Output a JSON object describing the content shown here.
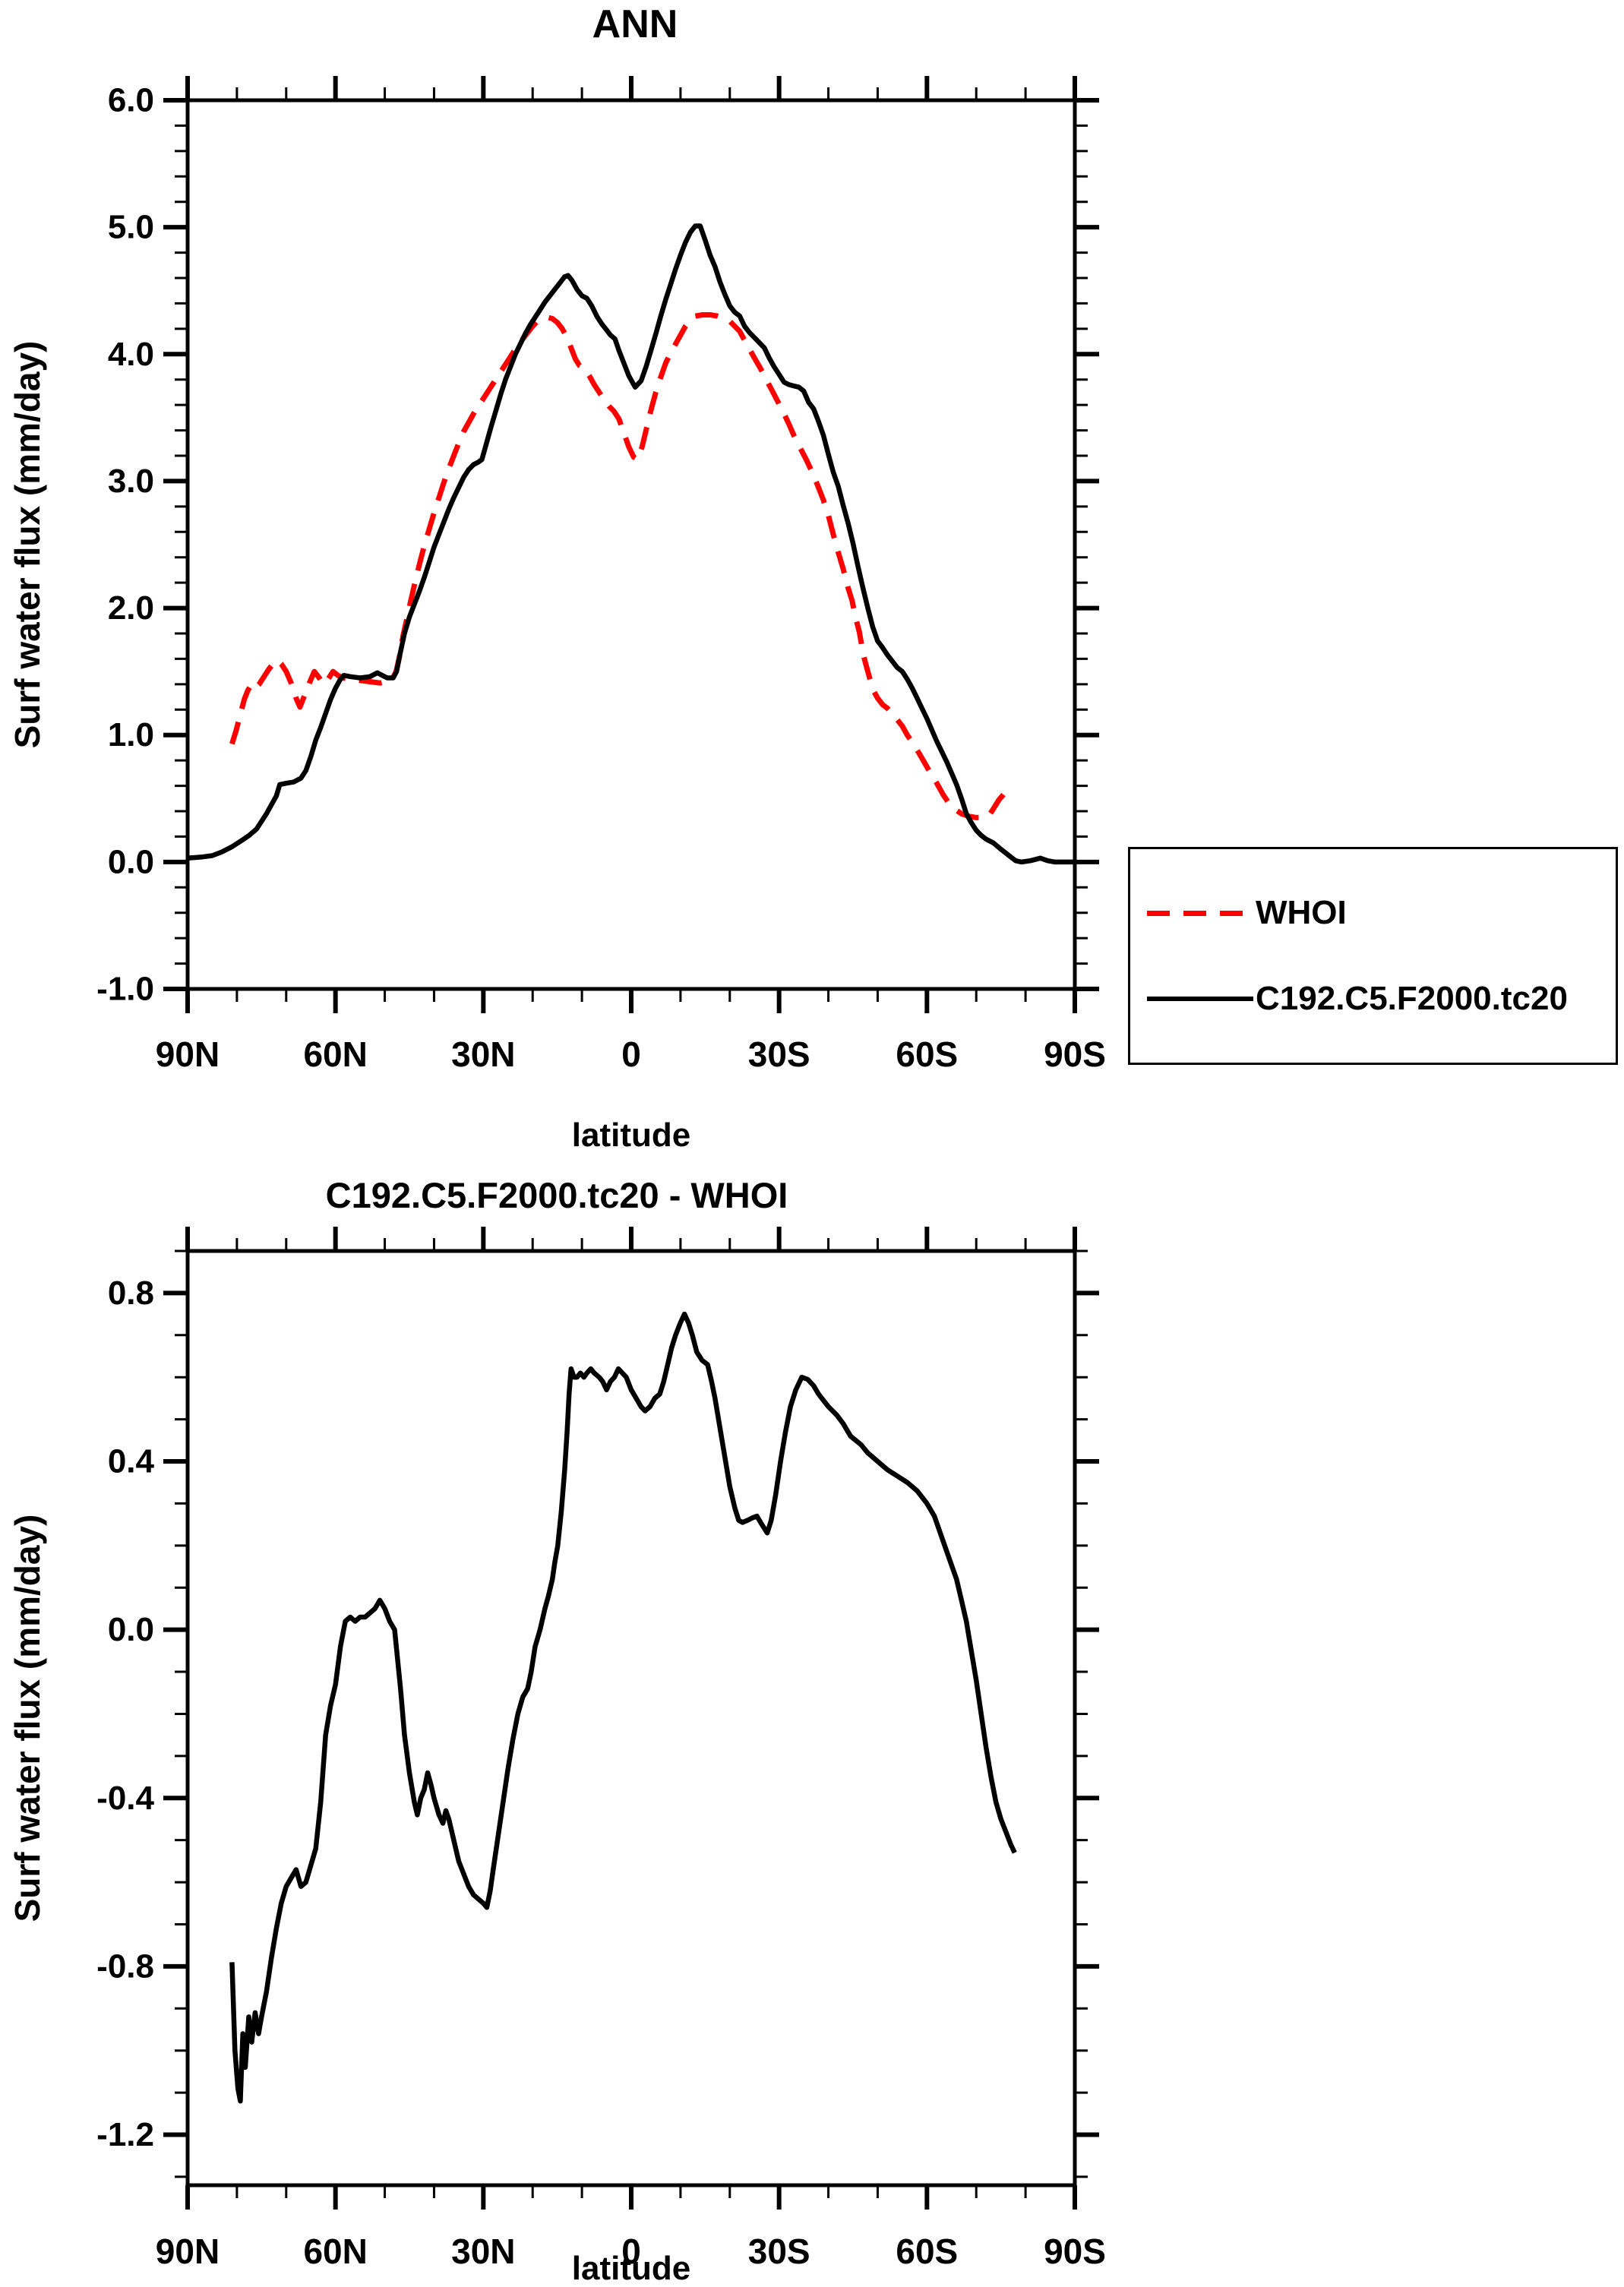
{
  "figure": {
    "background": "#ffffff",
    "accent_black": "#000000",
    "accent_red": "#ff0000"
  },
  "chart_data": [
    {
      "type": "line",
      "title": "ANN",
      "xlabel": "latitude",
      "ylabel": "Surf water flux (mm/day)",
      "xlim": [
        90,
        -90
      ],
      "ylim": [
        -1.0,
        6.0
      ],
      "grid": false,
      "x_tick_labels": [
        "90N",
        "60N",
        "30N",
        "0",
        "30S",
        "60S",
        "90S"
      ],
      "y_tick_labels": [
        "6.0",
        "5.0",
        "4.0",
        "3.0",
        "2.0",
        "1.0",
        "0.0",
        "-1.0"
      ],
      "x_minor_step": 10,
      "y_minor_step": 0.2,
      "legend_position": "outside-right-bottom",
      "series": [
        {
          "name": "WHOI",
          "color": "#ff0000",
          "style": "dashed",
          "lat": [
            81,
            80.2,
            79.4,
            78.5,
            77.8,
            77.2,
            76.5,
            75.5,
            74.5,
            73.5,
            72.5,
            71.8,
            71,
            70,
            69,
            68,
            67.2,
            66.3,
            65.3,
            64.3,
            63.3,
            62.5,
            61.5,
            60.5,
            59.5,
            58.5,
            57,
            55,
            53,
            51,
            49.5,
            48.5,
            47.7,
            47,
            46.3,
            45.5,
            44.7,
            44,
            43,
            42,
            41,
            40,
            39,
            38,
            37,
            36,
            35,
            34,
            33,
            32,
            31,
            30,
            29,
            28,
            27,
            26,
            25,
            24,
            23,
            22,
            21,
            20,
            19,
            18,
            17,
            16,
            15,
            14,
            13,
            12,
            11.3,
            10.5,
            9.5,
            8.5,
            7.5,
            6.5,
            5.5,
            4.5,
            3.5,
            2.5,
            1.5,
            0.5,
            -0.5,
            -1.3,
            -2.2,
            -3,
            -4,
            -5,
            -6,
            -7,
            -8,
            -9,
            -10,
            -11,
            -12,
            -13,
            -14.5,
            -16,
            -17.5,
            -19,
            -20,
            -21,
            -22,
            -23,
            -24,
            -25,
            -26.2,
            -27.4,
            -28.5,
            -29.7,
            -31,
            -32,
            -33,
            -34.3,
            -35.5,
            -36.6,
            -37.9,
            -39,
            -40,
            -41,
            -42,
            -43,
            -44,
            -44.8,
            -45.5,
            -46.3,
            -47.1,
            -48,
            -49,
            -50,
            -51,
            -52,
            -53,
            -54,
            -55,
            -56,
            -57.4,
            -58.5,
            -59.7,
            -61,
            -62,
            -63.3,
            -64.5,
            -65.5,
            -67,
            -68.5,
            -70,
            -71.5,
            -72.5,
            -73.5,
            -74.6,
            -75.5,
            -76.3,
            -77.3
          ],
          "val": [
            0.93,
            1.03,
            1.15,
            1.28,
            1.35,
            1.39,
            1.36,
            1.4,
            1.46,
            1.52,
            1.57,
            1.59,
            1.56,
            1.5,
            1.41,
            1.29,
            1.22,
            1.31,
            1.41,
            1.5,
            1.45,
            1.4,
            1.44,
            1.5,
            1.47,
            1.45,
            1.44,
            1.43,
            1.42,
            1.41,
            1.42,
            1.44,
            1.5,
            1.62,
            1.78,
            1.92,
            2.06,
            2.18,
            2.34,
            2.49,
            2.62,
            2.75,
            2.87,
            2.99,
            3.1,
            3.2,
            3.3,
            3.39,
            3.46,
            3.53,
            3.59,
            3.65,
            3.71,
            3.77,
            3.83,
            3.89,
            3.95,
            4.01,
            4.07,
            4.12,
            4.17,
            4.22,
            4.26,
            4.28,
            4.29,
            4.28,
            4.25,
            4.2,
            4.13,
            4.03,
            3.96,
            3.91,
            3.89,
            3.83,
            3.76,
            3.7,
            3.64,
            3.59,
            3.55,
            3.49,
            3.38,
            3.27,
            3.19,
            3.17,
            3.27,
            3.4,
            3.56,
            3.7,
            3.82,
            3.93,
            4.01,
            4.08,
            4.15,
            4.22,
            4.27,
            4.3,
            4.31,
            4.31,
            4.3,
            4.28,
            4.26,
            4.22,
            4.18,
            4.11,
            4.04,
            3.97,
            3.89,
            3.8,
            3.72,
            3.63,
            3.53,
            3.45,
            3.36,
            3.26,
            3.17,
            3.08,
            2.96,
            2.85,
            2.73,
            2.58,
            2.44,
            2.31,
            2.16,
            2.06,
            1.93,
            1.81,
            1.63,
            1.5,
            1.36,
            1.29,
            1.24,
            1.21,
            1.17,
            1.12,
            1.07,
            1.0,
            0.92,
            0.85,
            0.77,
            0.68,
            0.62,
            0.53,
            0.46,
            0.42,
            0.38,
            0.36,
            0.35,
            0.35,
            0.36,
            0.42,
            0.49,
            0.53,
            0.57,
            0.6
          ]
        },
        {
          "name": "C192.C5.F2000.tc20",
          "color": "#000000",
          "style": "solid",
          "lat": [
            90,
            87,
            85,
            83,
            81,
            79,
            77.5,
            76,
            75,
            74,
            73,
            72,
            71.3,
            70,
            68.5,
            67,
            66,
            65,
            64,
            63,
            62,
            61,
            60,
            59,
            58.3,
            57,
            55,
            53,
            51.5,
            50.5,
            49.5,
            48.3,
            47.6,
            47,
            46,
            45,
            44,
            43,
            42,
            41,
            40,
            39,
            38,
            37,
            36,
            35,
            34,
            33,
            32,
            31,
            30.3,
            29.5,
            28.5,
            27.5,
            26.5,
            25.5,
            24.5,
            23.5,
            22.5,
            21.5,
            20.5,
            19.5,
            18.5,
            17.5,
            16.5,
            15.5,
            14.5,
            13.5,
            12.8,
            12,
            11,
            10,
            9,
            8,
            7,
            6,
            5,
            4.2,
            3.3,
            2.5,
            1.5,
            0.5,
            -0.8,
            -2,
            -3,
            -4,
            -5,
            -6,
            -7,
            -8,
            -9,
            -10,
            -11,
            -12,
            -13,
            -14,
            -15,
            -16,
            -17,
            -18,
            -19,
            -20,
            -21,
            -22,
            -23,
            -24,
            -25.5,
            -27,
            -28,
            -29,
            -30,
            -31,
            -32,
            -33,
            -34,
            -35,
            -36,
            -37,
            -38,
            -39,
            -40,
            -41,
            -42,
            -43,
            -44,
            -45,
            -46,
            -47,
            -48,
            -49,
            -50,
            -50.8,
            -52,
            -53,
            -54,
            -55,
            -56,
            -57,
            -58,
            -59,
            -60,
            -61,
            -62,
            -63,
            -64,
            -65,
            -66,
            -67,
            -68,
            -69,
            -70,
            -71,
            -72,
            -73.5,
            -75,
            -76,
            -77,
            -78,
            -79.2,
            -81,
            -83,
            -84.5,
            -86,
            -88,
            -90
          ],
          "val": [
            0.03,
            0.04,
            0.05,
            0.08,
            0.12,
            0.17,
            0.21,
            0.26,
            0.32,
            0.38,
            0.45,
            0.52,
            0.61,
            0.62,
            0.63,
            0.66,
            0.72,
            0.83,
            0.96,
            1.06,
            1.17,
            1.28,
            1.37,
            1.44,
            1.47,
            1.46,
            1.45,
            1.46,
            1.49,
            1.47,
            1.45,
            1.45,
            1.5,
            1.62,
            1.8,
            1.93,
            2.03,
            2.13,
            2.24,
            2.36,
            2.48,
            2.58,
            2.68,
            2.78,
            2.87,
            2.95,
            3.03,
            3.09,
            3.13,
            3.15,
            3.17,
            3.28,
            3.42,
            3.55,
            3.68,
            3.8,
            3.9,
            4.0,
            4.08,
            4.16,
            4.23,
            4.29,
            4.35,
            4.41,
            4.46,
            4.51,
            4.56,
            4.61,
            4.62,
            4.58,
            4.51,
            4.46,
            4.44,
            4.38,
            4.3,
            4.24,
            4.19,
            4.15,
            4.12,
            4.03,
            3.93,
            3.83,
            3.74,
            3.79,
            3.9,
            4.03,
            4.16,
            4.3,
            4.43,
            4.55,
            4.67,
            4.78,
            4.88,
            4.96,
            5.01,
            5.01,
            4.9,
            4.78,
            4.69,
            4.57,
            4.47,
            4.38,
            4.33,
            4.3,
            4.22,
            4.17,
            4.11,
            4.05,
            3.97,
            3.9,
            3.84,
            3.78,
            3.76,
            3.75,
            3.74,
            3.71,
            3.62,
            3.57,
            3.47,
            3.36,
            3.21,
            3.07,
            2.96,
            2.81,
            2.67,
            2.51,
            2.33,
            2.16,
            2.0,
            1.85,
            1.74,
            1.7,
            1.63,
            1.58,
            1.53,
            1.5,
            1.44,
            1.37,
            1.29,
            1.21,
            1.13,
            1.04,
            0.95,
            0.87,
            0.79,
            0.7,
            0.61,
            0.5,
            0.38,
            0.31,
            0.25,
            0.21,
            0.18,
            0.15,
            0.1,
            0.07,
            0.04,
            0.01,
            0.0,
            0.01,
            0.03,
            0.01,
            0.0,
            0.0,
            0.0
          ]
        }
      ]
    },
    {
      "type": "line",
      "title": "C192.C5.F2000.tc20 - WHOI",
      "xlabel": "latitude",
      "ylabel": "Surf water flux (mm/day)",
      "xlim": [
        90,
        -90
      ],
      "ylim": [
        -1.32,
        0.9
      ],
      "grid": false,
      "x_tick_labels": [
        "90N",
        "60N",
        "30N",
        "0",
        "30S",
        "60S",
        "90S"
      ],
      "y_tick_labels": [
        "0.8",
        "0.4",
        "0.0",
        "-0.4",
        "-0.8",
        "-1.2"
      ],
      "x_minor_step": 10,
      "y_minor_step": 0.1,
      "legend_position": "none",
      "series": [
        {
          "name": "C192.C5.F2000.tc20 - WHOI",
          "color": "#000000",
          "style": "solid",
          "lat": [
            81,
            80.4,
            79.8,
            79.3,
            78.8,
            78.3,
            77.6,
            77,
            76.3,
            75.6,
            75,
            74,
            73,
            72,
            71,
            70,
            69,
            68,
            67,
            66,
            65,
            64,
            63,
            62,
            61,
            60,
            59,
            58,
            57,
            56,
            55,
            54,
            53,
            52,
            51,
            50,
            49,
            48,
            47.4,
            46.8,
            46,
            45,
            44,
            43.4,
            42.7,
            42,
            41.3,
            40.6,
            40,
            39,
            38.2,
            37.6,
            37,
            36,
            35,
            34,
            33,
            32,
            31,
            30,
            29.3,
            28.6,
            28,
            27,
            26,
            25,
            24,
            23,
            22,
            21,
            20.3,
            19.5,
            18.5,
            17.5,
            16.8,
            16,
            15.5,
            14.9,
            14.2,
            13.5,
            13,
            12.6,
            12.2,
            11.6,
            11,
            10.3,
            9.6,
            9,
            8.2,
            7.5,
            6.5,
            5.8,
            5,
            4.2,
            3.4,
            2.6,
            1.8,
            1,
            0,
            -1,
            -2,
            -2.8,
            -3.8,
            -4.8,
            -5.8,
            -6.6,
            -7.4,
            -8.2,
            -9,
            -10,
            -10.8,
            -11.6,
            -12.4,
            -13.3,
            -14.4,
            -15.5,
            -16.3,
            -17,
            -18,
            -19,
            -20,
            -21,
            -21.8,
            -22.6,
            -23.6,
            -24.6,
            -25.5,
            -26.5,
            -27.6,
            -28.4,
            -29.3,
            -30.3,
            -31.3,
            -32.3,
            -33.4,
            -34.6,
            -35.8,
            -37,
            -38,
            -39,
            -40,
            -41.7,
            -43,
            -44.5,
            -46.6,
            -48,
            -50,
            -52,
            -54,
            -56,
            -58,
            -60,
            -61.5,
            -63,
            -64.5,
            -66,
            -67,
            -68,
            -69,
            -70,
            -71,
            -72,
            -73,
            -74,
            -75,
            -76,
            -77,
            -77.8
          ],
          "val": [
            -0.79,
            -1.0,
            -1.09,
            -1.12,
            -0.96,
            -1.04,
            -0.92,
            -0.98,
            -0.91,
            -0.96,
            -0.92,
            -0.86,
            -0.78,
            -0.71,
            -0.65,
            -0.61,
            -0.59,
            -0.57,
            -0.61,
            -0.6,
            -0.56,
            -0.52,
            -0.41,
            -0.25,
            -0.18,
            -0.13,
            -0.04,
            0.02,
            0.03,
            0.02,
            0.03,
            0.03,
            0.04,
            0.05,
            0.07,
            0.05,
            0.02,
            0.0,
            -0.07,
            -0.14,
            -0.25,
            -0.34,
            -0.41,
            -0.44,
            -0.4,
            -0.38,
            -0.34,
            -0.37,
            -0.4,
            -0.44,
            -0.46,
            -0.43,
            -0.45,
            -0.5,
            -0.55,
            -0.58,
            -0.61,
            -0.63,
            -0.64,
            -0.65,
            -0.66,
            -0.62,
            -0.57,
            -0.49,
            -0.41,
            -0.33,
            -0.26,
            -0.2,
            -0.16,
            -0.14,
            -0.1,
            -0.04,
            0.0,
            0.05,
            0.08,
            0.12,
            0.16,
            0.2,
            0.28,
            0.38,
            0.47,
            0.56,
            0.62,
            0.6,
            0.6,
            0.61,
            0.6,
            0.61,
            0.62,
            0.61,
            0.6,
            0.59,
            0.57,
            0.59,
            0.6,
            0.62,
            0.61,
            0.6,
            0.57,
            0.55,
            0.53,
            0.52,
            0.53,
            0.55,
            0.56,
            0.59,
            0.63,
            0.67,
            0.7,
            0.73,
            0.75,
            0.73,
            0.7,
            0.66,
            0.64,
            0.63,
            0.59,
            0.55,
            0.48,
            0.41,
            0.34,
            0.29,
            0.26,
            0.255,
            0.26,
            0.266,
            0.27,
            0.25,
            0.23,
            0.26,
            0.32,
            0.4,
            0.47,
            0.53,
            0.57,
            0.6,
            0.595,
            0.58,
            0.56,
            0.545,
            0.53,
            0.51,
            0.49,
            0.46,
            0.44,
            0.42,
            0.4,
            0.38,
            0.365,
            0.35,
            0.33,
            0.3,
            0.27,
            0.22,
            0.17,
            0.12,
            0.07,
            0.02,
            -0.05,
            -0.12,
            -0.2,
            -0.28,
            -0.35,
            -0.41,
            -0.45,
            -0.48,
            -0.51,
            -0.53
          ]
        }
      ]
    }
  ]
}
